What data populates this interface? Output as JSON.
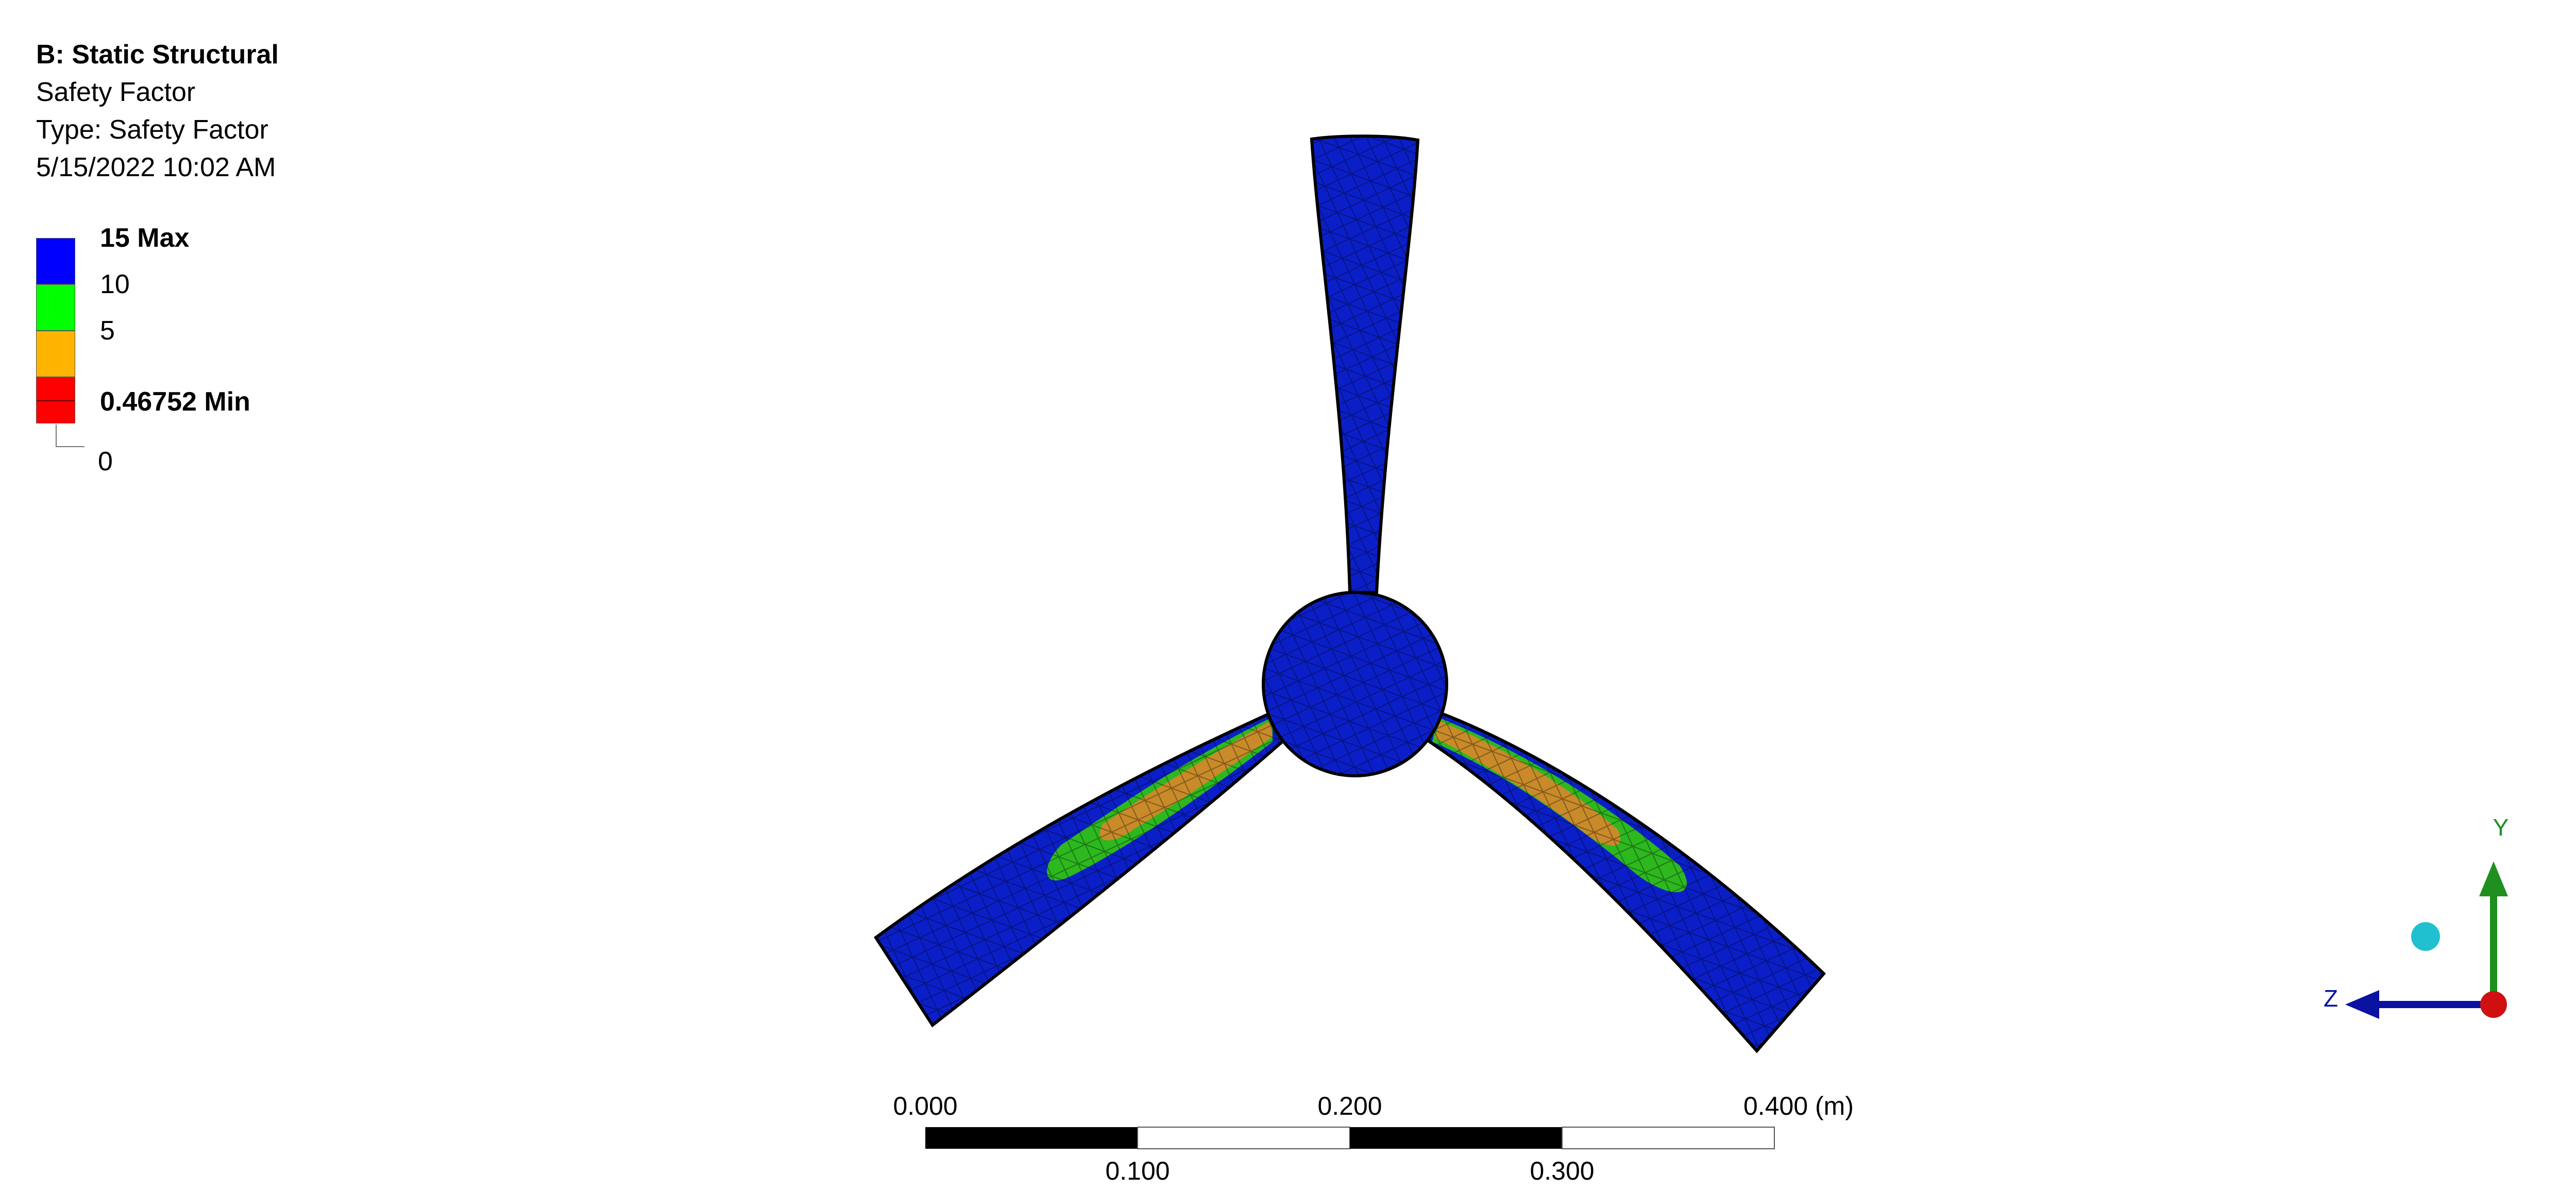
{
  "header": {
    "title": "B: Static Structural",
    "result_name": "Safety Factor",
    "type_line": "Type: Safety Factor",
    "timestamp": "5/15/2022 10:02 AM"
  },
  "legend": {
    "entries": [
      {
        "label": "15 Max",
        "color": "#0000ff"
      },
      {
        "label": "10",
        "color": "#00ff00"
      },
      {
        "label": "5",
        "color": "#ffb400"
      },
      {
        "label": "0.46752 Min",
        "color": "#ff0000"
      }
    ],
    "floor_label": "0"
  },
  "model": {
    "description_icon": "three-blade-propeller",
    "colors": {
      "safe": "#0b1fc8",
      "mid": "#2db81f",
      "low": "#c98a2a"
    }
  },
  "scale_bar": {
    "top_labels": [
      "0.000",
      "0.200",
      "0.400 (m)"
    ],
    "bottom_labels": [
      "0.100",
      "0.300"
    ]
  },
  "triad": {
    "y_label": "Y",
    "z_label": "Z",
    "colors": {
      "y": "#1f8f1f",
      "z": "#0a12a0",
      "origin": "#d01010",
      "iso_ball": "#20c0d0"
    }
  }
}
